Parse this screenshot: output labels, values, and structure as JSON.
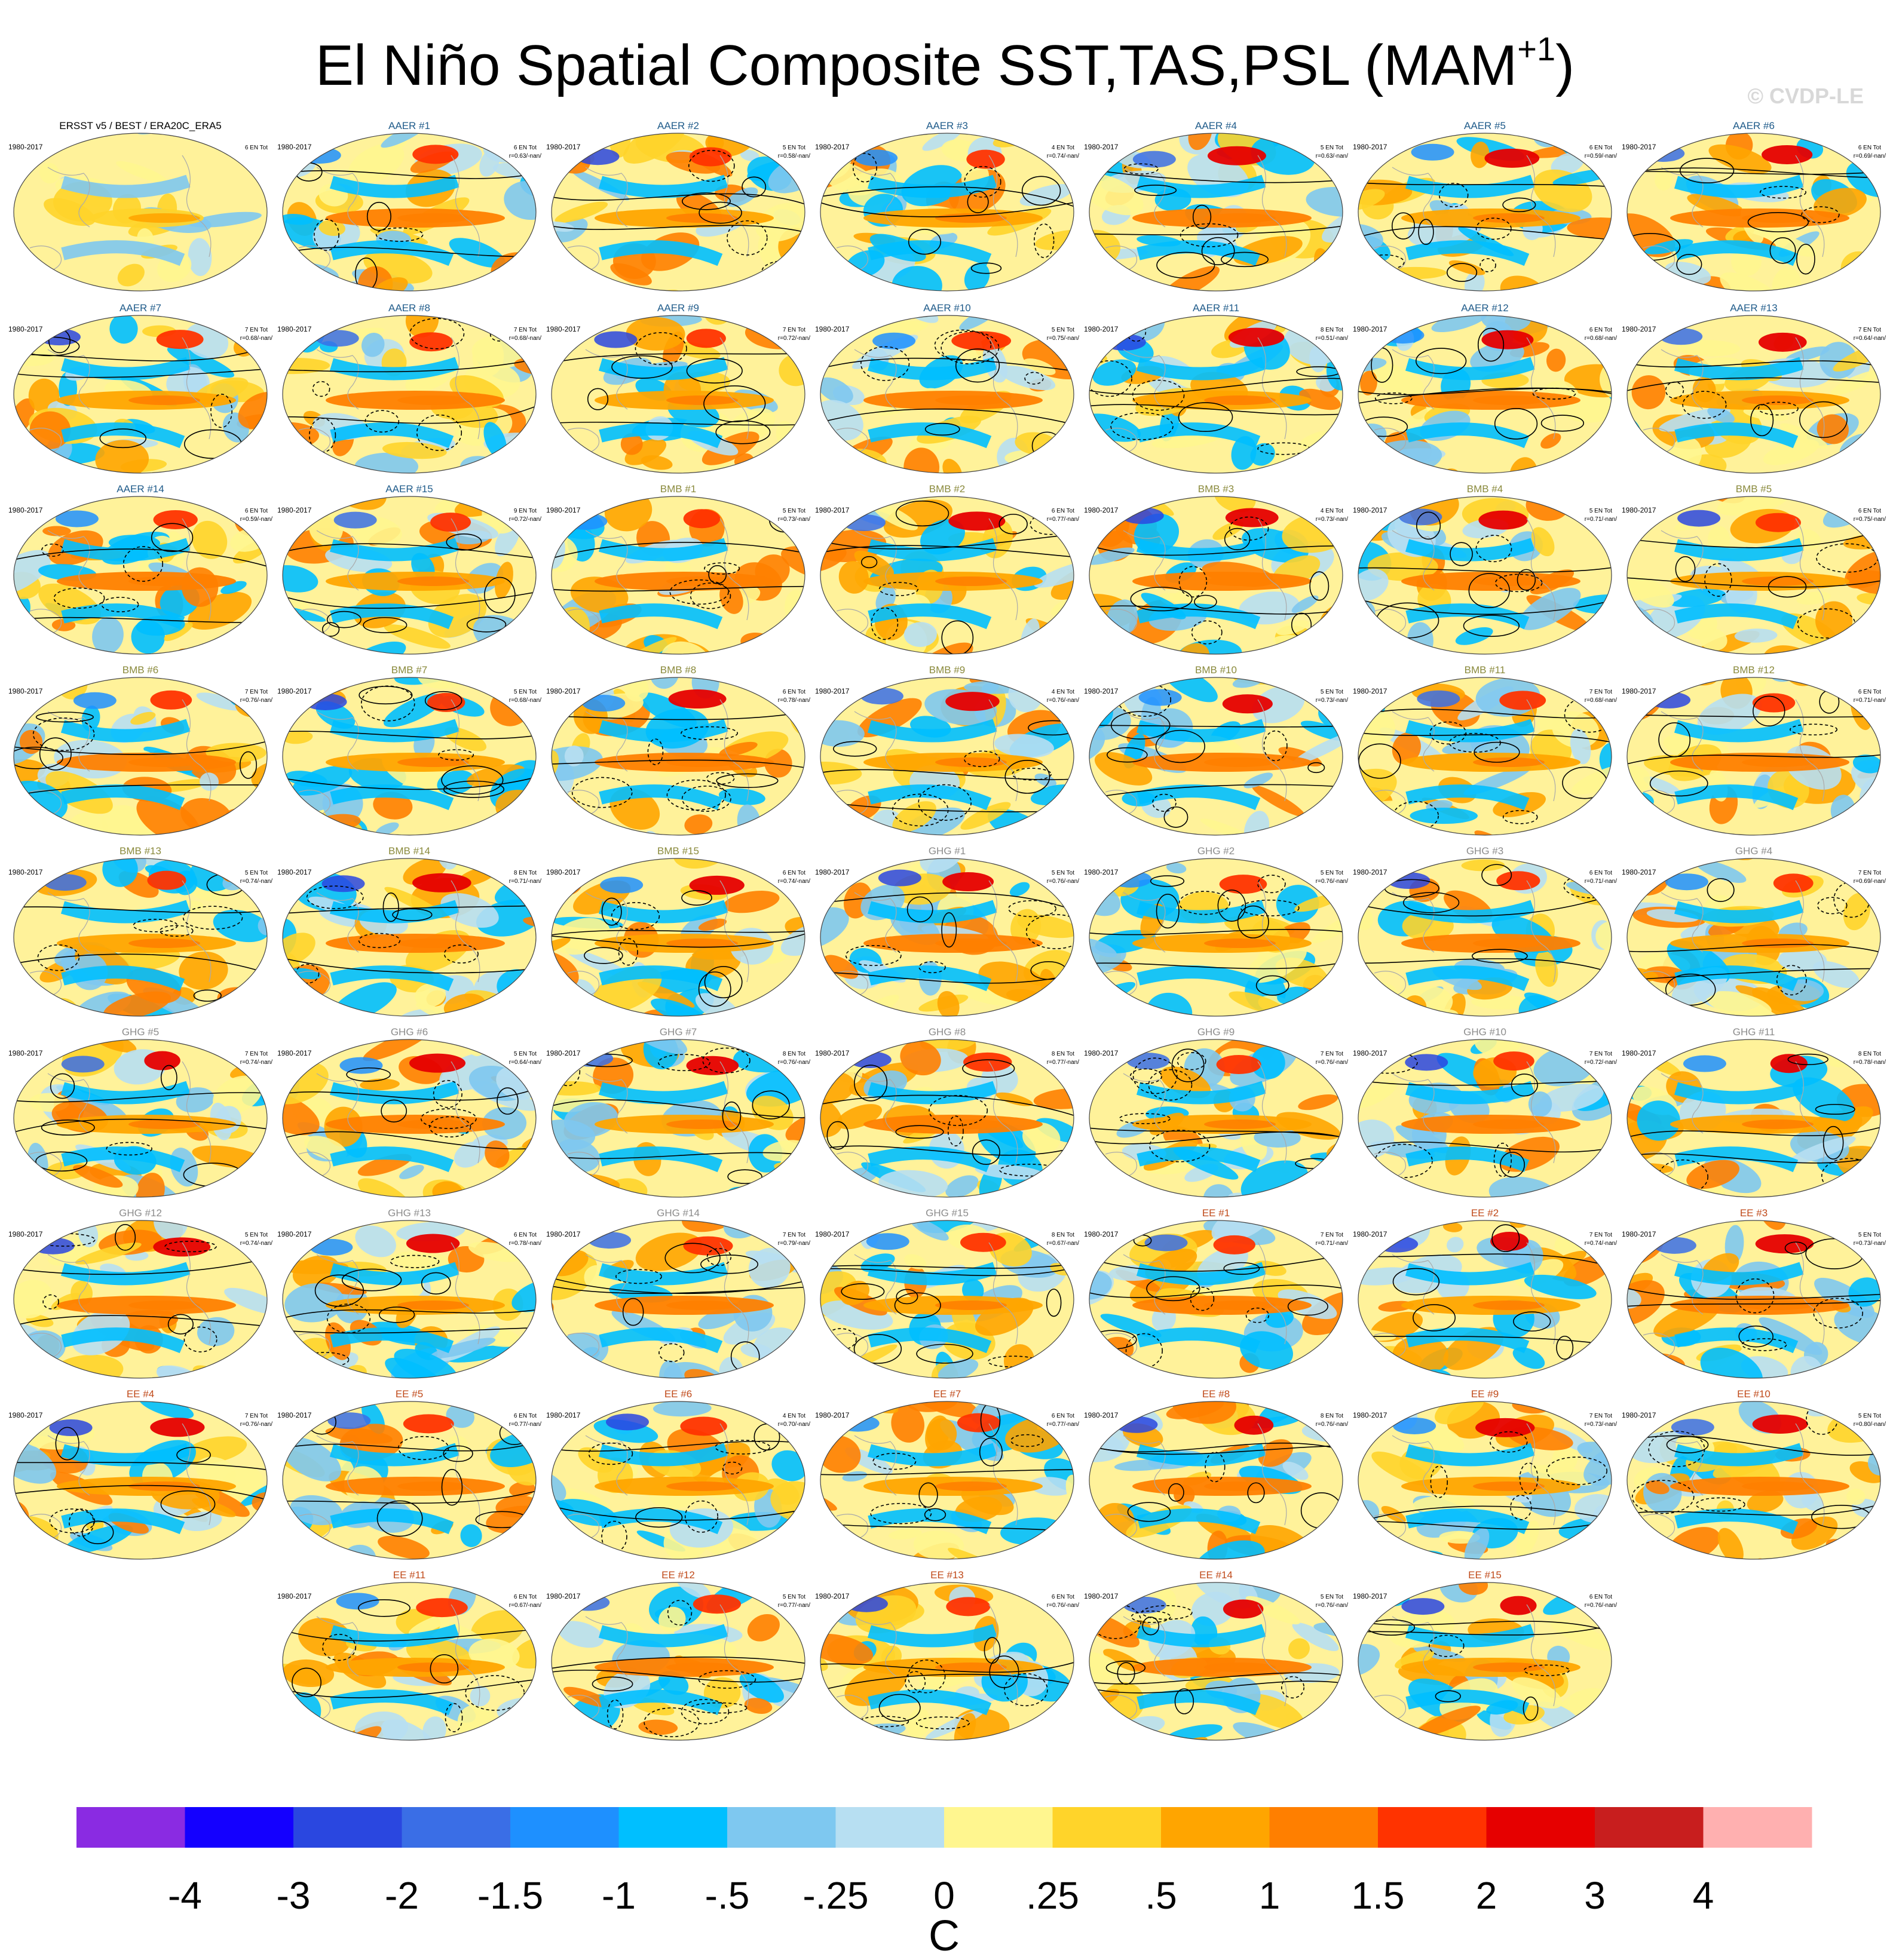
{
  "title": {
    "main": "El Niño Spatial Composite SST,TAS,PSL (MAM",
    "superscript": "+1",
    "close": ")"
  },
  "watermark": "© CVDP-LE",
  "group_colors": {
    "OBS": "#000000",
    "AAER": "#1f5b8a",
    "BMB": "#8a8a3c",
    "GHG": "#8c8c8c",
    "EE": "#c04a1a"
  },
  "panels": [
    {
      "title": "ERSST v5 / BEST / ERA20C_ERA5",
      "group": "OBS",
      "years": "1980-2017",
      "events": "6 EN Tot",
      "stat": ""
    },
    {
      "title": "AAER #1",
      "group": "AAER",
      "years": "1980-2017",
      "events": "6 EN Tot",
      "stat": "r=0.63/-nan/"
    },
    {
      "title": "AAER #2",
      "group": "AAER",
      "years": "1980-2017",
      "events": "5 EN Tot",
      "stat": "r=0.58/-nan/"
    },
    {
      "title": "AAER #3",
      "group": "AAER",
      "years": "1980-2017",
      "events": "4 EN Tot",
      "stat": "r=0.74/-nan/"
    },
    {
      "title": "AAER #4",
      "group": "AAER",
      "years": "1980-2017",
      "events": "5 EN Tot",
      "stat": "r=0.63/-nan/"
    },
    {
      "title": "AAER #5",
      "group": "AAER",
      "years": "1980-2017",
      "events": "6 EN Tot",
      "stat": "r=0.59/-nan/"
    },
    {
      "title": "AAER #6",
      "group": "AAER",
      "years": "1980-2017",
      "events": "6 EN Tot",
      "stat": "r=0.69/-nan/"
    },
    {
      "title": "AAER #7",
      "group": "AAER",
      "years": "1980-2017",
      "events": "7 EN Tot",
      "stat": "r=0.68/-nan/"
    },
    {
      "title": "AAER #8",
      "group": "AAER",
      "years": "1980-2017",
      "events": "7 EN Tot",
      "stat": "r=0.68/-nan/"
    },
    {
      "title": "AAER #9",
      "group": "AAER",
      "years": "1980-2017",
      "events": "7 EN Tot",
      "stat": "r=0.72/-nan/"
    },
    {
      "title": "AAER #10",
      "group": "AAER",
      "years": "1980-2017",
      "events": "5 EN Tot",
      "stat": "r=0.75/-nan/"
    },
    {
      "title": "AAER #11",
      "group": "AAER",
      "years": "1980-2017",
      "events": "8 EN Tot",
      "stat": "r=0.51/-nan/"
    },
    {
      "title": "AAER #12",
      "group": "AAER",
      "years": "1980-2017",
      "events": "6 EN Tot",
      "stat": "r=0.68/-nan/"
    },
    {
      "title": "AAER #13",
      "group": "AAER",
      "years": "1980-2017",
      "events": "7 EN Tot",
      "stat": "r=0.64/-nan/"
    },
    {
      "title": "AAER #14",
      "group": "AAER",
      "years": "1980-2017",
      "events": "6 EN Tot",
      "stat": "r=0.59/-nan/"
    },
    {
      "title": "AAER #15",
      "group": "AAER",
      "years": "1980-2017",
      "events": "9 EN Tot",
      "stat": "r=0.72/-nan/"
    },
    {
      "title": "BMB #1",
      "group": "BMB",
      "years": "1980-2017",
      "events": "5 EN Tot",
      "stat": "r=0.73/-nan/"
    },
    {
      "title": "BMB #2",
      "group": "BMB",
      "years": "1980-2017",
      "events": "6 EN Tot",
      "stat": "r=0.77/-nan/"
    },
    {
      "title": "BMB #3",
      "group": "BMB",
      "years": "1980-2017",
      "events": "4 EN Tot",
      "stat": "r=0.73/-nan/"
    },
    {
      "title": "BMB #4",
      "group": "BMB",
      "years": "1980-2017",
      "events": "5 EN Tot",
      "stat": "r=0.71/-nan/"
    },
    {
      "title": "BMB #5",
      "group": "BMB",
      "years": "1980-2017",
      "events": "6 EN Tot",
      "stat": "r=0.75/-nan/"
    },
    {
      "title": "BMB #6",
      "group": "BMB",
      "years": "1980-2017",
      "events": "7 EN Tot",
      "stat": "r=0.76/-nan/"
    },
    {
      "title": "BMB #7",
      "group": "BMB",
      "years": "1980-2017",
      "events": "5 EN Tot",
      "stat": "r=0.68/-nan/"
    },
    {
      "title": "BMB #8",
      "group": "BMB",
      "years": "1980-2017",
      "events": "6 EN Tot",
      "stat": "r=0.78/-nan/"
    },
    {
      "title": "BMB #9",
      "group": "BMB",
      "years": "1980-2017",
      "events": "4 EN Tot",
      "stat": "r=0.76/-nan/"
    },
    {
      "title": "BMB #10",
      "group": "BMB",
      "years": "1980-2017",
      "events": "5 EN Tot",
      "stat": "r=0.73/-nan/"
    },
    {
      "title": "BMB #11",
      "group": "BMB",
      "years": "1980-2017",
      "events": "7 EN Tot",
      "stat": "r=0.68/-nan/"
    },
    {
      "title": "BMB #12",
      "group": "BMB",
      "years": "1980-2017",
      "events": "6 EN Tot",
      "stat": "r=0.71/-nan/"
    },
    {
      "title": "BMB #13",
      "group": "BMB",
      "years": "1980-2017",
      "events": "5 EN Tot",
      "stat": "r=0.74/-nan/"
    },
    {
      "title": "BMB #14",
      "group": "BMB",
      "years": "1980-2017",
      "events": "8 EN Tot",
      "stat": "r=0.71/-nan/"
    },
    {
      "title": "BMB #15",
      "group": "BMB",
      "years": "1980-2017",
      "events": "6 EN Tot",
      "stat": "r=0.74/-nan/"
    },
    {
      "title": "GHG #1",
      "group": "GHG",
      "years": "1980-2017",
      "events": "5 EN Tot",
      "stat": "r=0.76/-nan/"
    },
    {
      "title": "GHG #2",
      "group": "GHG",
      "years": "1980-2017",
      "events": "5 EN Tot",
      "stat": "r=0.76/-nan/"
    },
    {
      "title": "GHG #3",
      "group": "GHG",
      "years": "1980-2017",
      "events": "6 EN Tot",
      "stat": "r=0.71/-nan/"
    },
    {
      "title": "GHG #4",
      "group": "GHG",
      "years": "1980-2017",
      "events": "7 EN Tot",
      "stat": "r=0.69/-nan/"
    },
    {
      "title": "GHG #5",
      "group": "GHG",
      "years": "1980-2017",
      "events": "7 EN Tot",
      "stat": "r=0.74/-nan/"
    },
    {
      "title": "GHG #6",
      "group": "GHG",
      "years": "1980-2017",
      "events": "5 EN Tot",
      "stat": "r=0.64/-nan/"
    },
    {
      "title": "GHG #7",
      "group": "GHG",
      "years": "1980-2017",
      "events": "8 EN Tot",
      "stat": "r=0.76/-nan/"
    },
    {
      "title": "GHG #8",
      "group": "GHG",
      "years": "1980-2017",
      "events": "8 EN Tot",
      "stat": "r=0.77/-nan/"
    },
    {
      "title": "GHG #9",
      "group": "GHG",
      "years": "1980-2017",
      "events": "7 EN Tot",
      "stat": "r=0.76/-nan/"
    },
    {
      "title": "GHG #10",
      "group": "GHG",
      "years": "1980-2017",
      "events": "7 EN Tot",
      "stat": "r=0.72/-nan/"
    },
    {
      "title": "GHG #11",
      "group": "GHG",
      "years": "1980-2017",
      "events": "8 EN Tot",
      "stat": "r=0.78/-nan/"
    },
    {
      "title": "GHG #12",
      "group": "GHG",
      "years": "1980-2017",
      "events": "5 EN Tot",
      "stat": "r=0.74/-nan/"
    },
    {
      "title": "GHG #13",
      "group": "GHG",
      "years": "1980-2017",
      "events": "6 EN Tot",
      "stat": "r=0.78/-nan/"
    },
    {
      "title": "GHG #14",
      "group": "GHG",
      "years": "1980-2017",
      "events": "7 EN Tot",
      "stat": "r=0.79/-nan/"
    },
    {
      "title": "GHG #15",
      "group": "GHG",
      "years": "1980-2017",
      "events": "8 EN Tot",
      "stat": "r=0.67/-nan/"
    },
    {
      "title": "EE #1",
      "group": "EE",
      "years": "1980-2017",
      "events": "7 EN Tot",
      "stat": "r=0.71/-nan/"
    },
    {
      "title": "EE #2",
      "group": "EE",
      "years": "1980-2017",
      "events": "7 EN Tot",
      "stat": "r=0.74/-nan/"
    },
    {
      "title": "EE #3",
      "group": "EE",
      "years": "1980-2017",
      "events": "5 EN Tot",
      "stat": "r=0.73/-nan/"
    },
    {
      "title": "EE #4",
      "group": "EE",
      "years": "1980-2017",
      "events": "7 EN Tot",
      "stat": "r=0.76/-nan/"
    },
    {
      "title": "EE #5",
      "group": "EE",
      "years": "1980-2017",
      "events": "6 EN Tot",
      "stat": "r=0.77/-nan/"
    },
    {
      "title": "EE #6",
      "group": "EE",
      "years": "1980-2017",
      "events": "4 EN Tot",
      "stat": "r=0.70/-nan/"
    },
    {
      "title": "EE #7",
      "group": "EE",
      "years": "1980-2017",
      "events": "6 EN Tot",
      "stat": "r=0.77/-nan/"
    },
    {
      "title": "EE #8",
      "group": "EE",
      "years": "1980-2017",
      "events": "8 EN Tot",
      "stat": "r=0.76/-nan/"
    },
    {
      "title": "EE #9",
      "group": "EE",
      "years": "1980-2017",
      "events": "7 EN Tot",
      "stat": "r=0.73/-nan/"
    },
    {
      "title": "EE #10",
      "group": "EE",
      "years": "1980-2017",
      "events": "5 EN Tot",
      "stat": "r=0.80/-nan/"
    },
    {
      "title": "EE #11",
      "group": "EE",
      "years": "1980-2017",
      "events": "6 EN Tot",
      "stat": "r=0.67/-nan/"
    },
    {
      "title": "EE #12",
      "group": "EE",
      "years": "1980-2017",
      "events": "5 EN Tot",
      "stat": "r=0.77/-nan/"
    },
    {
      "title": "EE #13",
      "group": "EE",
      "years": "1980-2017",
      "events": "6 EN Tot",
      "stat": "r=0.76/-nan/"
    },
    {
      "title": "EE #14",
      "group": "EE",
      "years": "1980-2017",
      "events": "5 EN Tot",
      "stat": "r=0.76/-nan/"
    },
    {
      "title": "EE #15",
      "group": "EE",
      "years": "1980-2017",
      "events": "6 EN Tot",
      "stat": "r=0.76/-nan/"
    }
  ],
  "colorbar": {
    "unit": "C",
    "ticks": [
      "-4",
      "-3",
      "-2",
      "-1.5",
      "-1",
      "-.5",
      "-.25",
      "0",
      ".25",
      ".5",
      "1",
      "1.5",
      "2",
      "3",
      "4"
    ],
    "colors": [
      "#8a2be2",
      "#1400ff",
      "#2a47e0",
      "#3a6ee6",
      "#1e90ff",
      "#00bfff",
      "#7ec8f0",
      "#b7dff2",
      "#fff68f",
      "#ffd42a",
      "#ffa500",
      "#ff7f00",
      "#ff3300",
      "#e60000",
      "#c81e1e",
      "#ffb0b0"
    ]
  },
  "map_style": {
    "ocean_base": "#fff29a",
    "land_base": "#ffe27a",
    "coast": "#aaaaaa",
    "contour": "#000000"
  }
}
